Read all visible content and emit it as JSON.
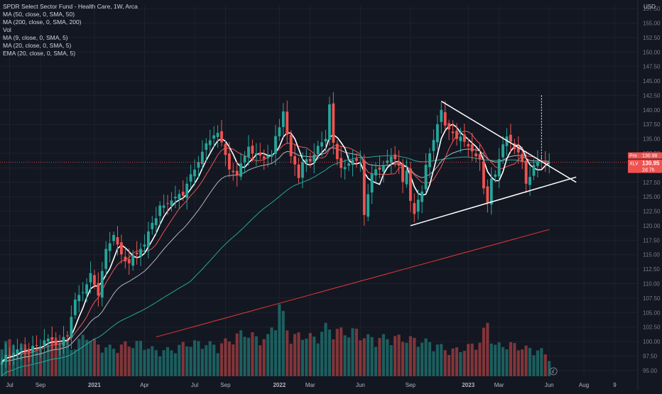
{
  "legend": {
    "title": "SPDR Select Sector Fund - Health Care, 1W, Arca",
    "indicators": [
      "MA (50, close, 0, SMA, 50)",
      "MA (200, close, 0, SMA, 200)",
      "Vol",
      "MA (9, close, 0, SMA, 5)",
      "MA (20, close, 0, SMA, 5)",
      "EMA (20, close, 0, SMA, 5)"
    ]
  },
  "price_axis": {
    "currency": "USD",
    "badges": {
      "pre_label": "Pre",
      "pre_value": "130.98",
      "ticker_label": "XLV",
      "ticker_value": "130.95",
      "countdown": "2d 7h"
    }
  },
  "colors": {
    "background": "#131722",
    "up": "#26a69a",
    "down": "#ef5350",
    "ma50": "#26a69a",
    "ma200": "#e53935",
    "ma9": "#ef5350",
    "ma20": "#ffffff",
    "ema20": "#b2b5be",
    "triangle": "#ffffff",
    "grid": "#1e222d"
  },
  "chart_data": {
    "type": "candlestick",
    "title": "SPDR Select Sector Fund - Health Care, 1W, Arca",
    "ylabel": "USD",
    "ylim": [
      94,
      158
    ],
    "y_ticks": [
      95,
      97.5,
      100,
      102.5,
      105,
      107.5,
      110,
      112.5,
      115,
      117.5,
      120,
      122.5,
      125,
      127.5,
      130,
      132.5,
      135,
      137.5,
      140,
      142.5,
      145,
      147.5,
      150,
      152.5,
      155,
      157.5
    ],
    "x_tick_labels": [
      {
        "label": "Jul",
        "bar": 2
      },
      {
        "label": "Sep",
        "bar": 10
      },
      {
        "label": "2021",
        "bar": 24
      },
      {
        "label": "Apr",
        "bar": 37
      },
      {
        "label": "Jul",
        "bar": 50
      },
      {
        "label": "Sep",
        "bar": 58
      },
      {
        "label": "2022",
        "bar": 72
      },
      {
        "label": "Mar",
        "bar": 80
      },
      {
        "label": "Jun",
        "bar": 93
      },
      {
        "label": "Sep",
        "bar": 106
      },
      {
        "label": "2023",
        "bar": 121
      },
      {
        "label": "Mar",
        "bar": 129
      },
      {
        "label": "Jun",
        "bar": 142
      },
      {
        "label": "Aug",
        "bar": 151
      },
      {
        "label": "9",
        "bar": 159
      }
    ],
    "x_span": [
      -0.5,
      165
    ],
    "anchors": [
      [
        0,
        96.5
      ],
      [
        3,
        98
      ],
      [
        6,
        98.6
      ],
      [
        9,
        99.3
      ],
      [
        12,
        100.5
      ],
      [
        15,
        99.5
      ],
      [
        17,
        101.5
      ],
      [
        19,
        107
      ],
      [
        21,
        108.5
      ],
      [
        23,
        111
      ],
      [
        25,
        108.5
      ],
      [
        27,
        116
      ],
      [
        29,
        119
      ],
      [
        31,
        114.5
      ],
      [
        33,
        113.5
      ],
      [
        35,
        115
      ],
      [
        37,
        117
      ],
      [
        39,
        120.5
      ],
      [
        41,
        123
      ],
      [
        43,
        124
      ],
      [
        45,
        125
      ],
      [
        47,
        126
      ],
      [
        49,
        128.5
      ],
      [
        51,
        131
      ],
      [
        53,
        133.5
      ],
      [
        55,
        136
      ],
      [
        56,
        135.8
      ],
      [
        58,
        133
      ],
      [
        59,
        130
      ],
      [
        61,
        128.5
      ],
      [
        62,
        131
      ],
      [
        64,
        133
      ],
      [
        66,
        132.5
      ],
      [
        68,
        131.5
      ],
      [
        70,
        132.5
      ],
      [
        72,
        137
      ],
      [
        73,
        140
      ],
      [
        74,
        135.5
      ],
      [
        75,
        132
      ],
      [
        76,
        131
      ],
      [
        77,
        129
      ],
      [
        78,
        131
      ],
      [
        80,
        131.5
      ],
      [
        82,
        133
      ],
      [
        84,
        135
      ],
      [
        85,
        141
      ],
      [
        86,
        134
      ],
      [
        87,
        131.5
      ],
      [
        89,
        130
      ],
      [
        91,
        131.5
      ],
      [
        93,
        131
      ],
      [
        94,
        121.5
      ],
      [
        95,
        126
      ],
      [
        96,
        129
      ],
      [
        98,
        130
      ],
      [
        100,
        131
      ],
      [
        102,
        131.5
      ],
      [
        103,
        130.5
      ],
      [
        104,
        127
      ],
      [
        105,
        129.5
      ],
      [
        106,
        125
      ],
      [
        107,
        122.5
      ],
      [
        108,
        124.5
      ],
      [
        109,
        126
      ],
      [
        110,
        131
      ],
      [
        111,
        132.5
      ],
      [
        112,
        134
      ],
      [
        113,
        137.5
      ],
      [
        114,
        140
      ],
      [
        115,
        137
      ],
      [
        117,
        136
      ],
      [
        119,
        135
      ],
      [
        121,
        134
      ],
      [
        122,
        132.5
      ],
      [
        124,
        131.5
      ],
      [
        125,
        127
      ],
      [
        126,
        124
      ],
      [
        127,
        128
      ],
      [
        128,
        129.5
      ],
      [
        129,
        131.5
      ],
      [
        130,
        133.5
      ],
      [
        131,
        135
      ],
      [
        132,
        134.5
      ],
      [
        133,
        133
      ],
      [
        134,
        132
      ],
      [
        135,
        131
      ],
      [
        136,
        128
      ],
      [
        137,
        128.5
      ],
      [
        138,
        130.5
      ],
      [
        139,
        131.5
      ],
      [
        140,
        131.5
      ],
      [
        141,
        130.8
      ],
      [
        142,
        130.95
      ]
    ],
    "volume_anchors": [
      [
        0,
        0.28
      ],
      [
        5,
        0.24
      ],
      [
        10,
        0.2
      ],
      [
        15,
        0.33
      ],
      [
        18,
        0.22
      ],
      [
        22,
        0.33
      ],
      [
        25,
        0.24
      ],
      [
        29,
        0.22
      ],
      [
        32,
        0.25
      ],
      [
        36,
        0.26
      ],
      [
        40,
        0.2
      ],
      [
        44,
        0.21
      ],
      [
        48,
        0.26
      ],
      [
        52,
        0.26
      ],
      [
        56,
        0.24
      ],
      [
        60,
        0.3
      ],
      [
        63,
        0.35
      ],
      [
        66,
        0.3
      ],
      [
        69,
        0.3
      ],
      [
        72,
        0.55
      ],
      [
        75,
        0.3
      ],
      [
        78,
        0.33
      ],
      [
        81,
        0.3
      ],
      [
        84,
        0.38
      ],
      [
        88,
        0.35
      ],
      [
        92,
        0.35
      ],
      [
        95,
        0.3
      ],
      [
        100,
        0.3
      ],
      [
        104,
        0.3
      ],
      [
        108,
        0.28
      ],
      [
        112,
        0.26
      ],
      [
        116,
        0.2
      ],
      [
        120,
        0.22
      ],
      [
        124,
        0.27
      ],
      [
        126,
        0.42
      ],
      [
        128,
        0.24
      ],
      [
        132,
        0.25
      ],
      [
        136,
        0.22
      ],
      [
        140,
        0.2
      ],
      [
        142,
        0.15
      ]
    ],
    "triangle": {
      "upper": [
        [
          114,
          141.5
        ],
        [
          149,
          127.5
        ]
      ],
      "lower": [
        [
          106,
          120
        ],
        [
          149,
          128.4
        ]
      ],
      "apex_target": [
        [
          140,
          142.5
        ],
        [
          140,
          131.5
        ]
      ]
    },
    "last_close": 130.95,
    "premarket": 130.98
  }
}
